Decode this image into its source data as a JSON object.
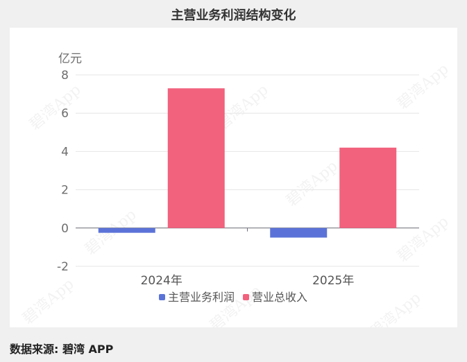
{
  "header": {
    "title": "主营业务利润结构变化"
  },
  "footer": {
    "source": "数据来源: 碧湾 APP"
  },
  "watermark": "碧湾App",
  "chart_data": {
    "type": "bar",
    "title": "主营业务利润结构变化",
    "ylabel": "亿元",
    "xlabel": "",
    "categories": [
      "2024年",
      "2025年"
    ],
    "series": [
      {
        "name": "主营业务利润",
        "values": [
          -0.25,
          -0.5
        ],
        "color": "#5b73d8"
      },
      {
        "name": "营业总收入",
        "values": [
          7.3,
          4.2
        ],
        "color": "#f2627d"
      }
    ],
    "ylim": [
      -2,
      8
    ],
    "yticks": [
      -2,
      0,
      2,
      4,
      6,
      8
    ],
    "grid": true,
    "legend_position": "bottom"
  }
}
